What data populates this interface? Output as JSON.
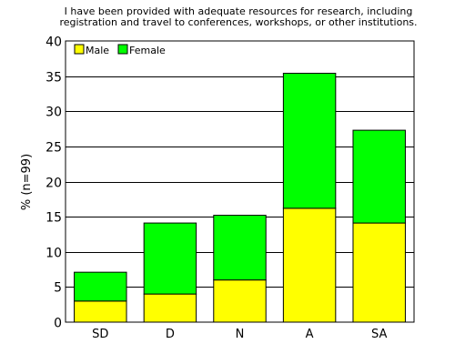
{
  "chart_data": {
    "type": "bar",
    "stacked": true,
    "title_lines": [
      "I have been provided with adequate resources for research, including",
      "registration and travel to conferences, workshops, or other institutions."
    ],
    "ylabel": "% (n=99)",
    "xlabel": "",
    "categories": [
      "SD",
      "D",
      "N",
      "A",
      "SA"
    ],
    "series": [
      {
        "name": "Male",
        "color": "#ffff00",
        "values": [
          3,
          4,
          6,
          16.2,
          14.1
        ]
      },
      {
        "name": "Female",
        "color": "#00ff00",
        "values": [
          4.1,
          10.1,
          9.2,
          19.2,
          13.2
        ]
      }
    ],
    "ylim": [
      0,
      40
    ],
    "yticks": [
      0,
      5,
      10,
      15,
      20,
      25,
      30,
      35,
      40
    ],
    "grid": true,
    "legend_position": "top-left"
  }
}
